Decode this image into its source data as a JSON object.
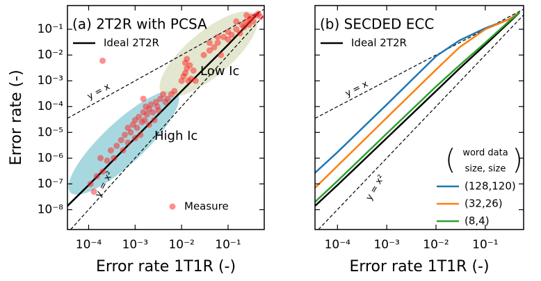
{
  "chart_data": [
    {
      "type": "line",
      "title": "(a) 2T2R with PCSA",
      "xlabel": "Error rate 1T1R (-)",
      "ylabel": "Error rate (-)",
      "xscale": "log",
      "yscale": "log",
      "xlim": [
        3.5e-05,
        0.6
      ],
      "ylim": [
        1.7e-09,
        0.83
      ],
      "xticks": [
        {
          "value": 0.0001,
          "label": "10⁻⁴"
        },
        {
          "value": 0.001,
          "label": "10⁻³"
        },
        {
          "value": 0.01,
          "label": "10⁻²"
        },
        {
          "value": 0.1,
          "label": "10⁻¹"
        }
      ],
      "yticks": [
        {
          "value": 1e-08,
          "label": "10⁻⁸"
        },
        {
          "value": 1e-07,
          "label": "10⁻⁷"
        },
        {
          "value": 1e-06,
          "label": "10⁻⁶"
        },
        {
          "value": 1e-05,
          "label": "10⁻⁵"
        },
        {
          "value": 0.0001,
          "label": "10⁻⁴"
        },
        {
          "value": 0.001,
          "label": "10⁻³"
        },
        {
          "value": 0.01,
          "label": "10⁻²"
        },
        {
          "value": 0.1,
          "label": "10⁻¹"
        }
      ],
      "annotations": [
        {
          "text": "Low Ic",
          "color": "#5d6b2a"
        },
        {
          "text": "High Ic",
          "color": "#2b6577"
        }
      ],
      "series": [
        {
          "name": "Ideal 2T2R",
          "color": "#000000",
          "legend": "upper left",
          "x": [
            3.5e-05,
            0.0001,
            0.001,
            0.01,
            0.1,
            0.46
          ],
          "values": [
            1.4e-08,
            9e-08,
            6e-06,
            0.0004,
            0.025,
            0.45
          ]
        },
        {
          "name": "y = x",
          "color": "#000000",
          "style": "dashed",
          "x": [
            3.5e-05,
            0.6
          ],
          "values": [
            3.5e-05,
            0.6
          ]
        },
        {
          "name": "y = x²",
          "color": "#000000",
          "style": "dashed",
          "x": [
            4.1e-05,
            0.6
          ],
          "values": [
            1.7e-09,
            0.36
          ]
        },
        {
          "name": "Measure",
          "type": "scatter",
          "color": "#ff2020",
          "legend": "lower right",
          "x": [
            0.00011,
            0.00013,
            0.00015,
            0.00018,
            0.0002,
            0.00025,
            0.0003,
            0.00035,
            0.0004,
            0.0005,
            0.00055,
            0.0006,
            0.0007,
            0.0007,
            0.0008,
            0.0009,
            0.001,
            0.001,
            0.0011,
            0.0012,
            0.0013,
            0.0014,
            0.0015,
            0.0016,
            0.0017,
            0.0018,
            0.002,
            0.002,
            0.0022,
            0.0024,
            0.0026,
            0.0028,
            0.003,
            0.0032,
            0.0035,
            0.004,
            0.0045,
            0.005,
            0.006,
            0.007,
            0.0002,
            0.0015,
            0.01,
            0.011,
            0.012,
            0.013,
            0.014,
            0.015,
            0.012,
            0.016,
            0.018,
            0.013,
            0.02,
            0.03,
            0.04,
            0.05,
            0.06,
            0.07,
            0.08,
            0.1,
            0.1,
            0.12,
            0.15,
            0.18,
            0.2,
            0.22,
            0.25,
            0.28,
            0.3,
            0.32,
            0.35,
            0.4,
            0.45,
            0.5,
            0.25,
            0.15,
            0.06,
            0.04
          ],
          "values": [
            1e-07,
            5e-08,
            2e-07,
            1e-06,
            3e-07,
            8e-07,
            2e-06,
            1e-06,
            3e-06,
            5e-06,
            2e-06,
            8e-06,
            4e-06,
            1.5e-05,
            1e-05,
            2e-05,
            6e-06,
            3e-05,
            1.5e-05,
            4e-05,
            8e-06,
            2.5e-05,
            6e-05,
            3e-05,
            0.0001,
            5e-05,
            2e-05,
            8e-05,
            0.00012,
            6e-05,
            3e-05,
            0.00015,
            0.0001,
            7e-05,
            0.0002,
            0.0003,
            0.00015,
            0.0002,
            0.0003,
            0.0004,
            0.006,
            0.0002,
            0.001,
            0.0015,
            0.002,
            0.003,
            0.001,
            0.004,
            0.005,
            0.0012,
            0.0025,
            0.007,
            0.001,
            0.01,
            0.015,
            0.02,
            0.03,
            0.01,
            0.05,
            0.04,
            0.08,
            0.06,
            0.1,
            0.07,
            0.15,
            0.12,
            0.2,
            0.15,
            0.25,
            0.3,
            0.2,
            0.35,
            0.4,
            0.3,
            0.35,
            0.2,
            0.05,
            0.03
          ]
        }
      ]
    },
    {
      "type": "line",
      "title": "(b) SECDED ECC",
      "xlabel": "Error rate 1T1R (-)",
      "xscale": "log",
      "yscale": "log",
      "xlim": [
        3.5e-05,
        0.6
      ],
      "ylim": [
        1.7e-09,
        0.83
      ],
      "xticks": [
        {
          "value": 0.0001,
          "label": "10⁻⁴"
        },
        {
          "value": 0.001,
          "label": "10⁻³"
        },
        {
          "value": 0.01,
          "label": "10⁻²"
        },
        {
          "value": 0.1,
          "label": "10⁻¹"
        }
      ],
      "yticks": [
        1e-08,
        1e-07,
        1e-06,
        1e-05,
        0.0001,
        0.001,
        0.01,
        0.1
      ],
      "legend_title": [
        "word data",
        "size, size"
      ],
      "series": [
        {
          "name": "Ideal 2T2R",
          "color": "#000000",
          "legend": "upper left",
          "x": [
            3.5e-05,
            0.0001,
            0.001,
            0.01,
            0.03,
            0.1,
            0.3,
            0.5
          ],
          "values": [
            1.4e-08,
            9e-08,
            6e-06,
            0.0004,
            0.003,
            0.025,
            0.18,
            0.45
          ]
        },
        {
          "name": "y = x",
          "color": "#000000",
          "style": "dashed",
          "x": [
            3.5e-05,
            0.6
          ],
          "values": [
            3.5e-05,
            0.6
          ]
        },
        {
          "name": "y = x²",
          "color": "#000000",
          "style": "dashed",
          "x": [
            4.1e-05,
            0.6
          ],
          "values": [
            1.7e-09,
            0.36
          ]
        },
        {
          "name": "(128,120)",
          "color": "#1f77b4",
          "legend": "lower right",
          "x": [
            3.5e-05,
            0.0001,
            0.001,
            0.01,
            0.03,
            0.1,
            0.3,
            0.5
          ],
          "values": [
            2.7e-07,
            1.7e-06,
            0.00012,
            0.009,
            0.037,
            0.11,
            0.24,
            0.45
          ]
        },
        {
          "name": "(32,26)",
          "color": "#ff7f0e",
          "legend": "lower right",
          "x": [
            3.5e-05,
            0.0001,
            0.001,
            0.01,
            0.03,
            0.1,
            0.3,
            0.5
          ],
          "values": [
            7e-08,
            5e-07,
            3.7e-05,
            0.0027,
            0.02,
            0.1,
            0.24,
            0.45
          ]
        },
        {
          "name": "(8,4)",
          "color": "#2ca02c",
          "legend": "lower right",
          "x": [
            3.5e-05,
            0.0001,
            0.001,
            0.01,
            0.03,
            0.1,
            0.3,
            0.5
          ],
          "values": [
            2e-08,
            1.3e-07,
            9e-06,
            0.0006,
            0.004,
            0.03,
            0.2,
            0.45
          ]
        }
      ]
    }
  ]
}
